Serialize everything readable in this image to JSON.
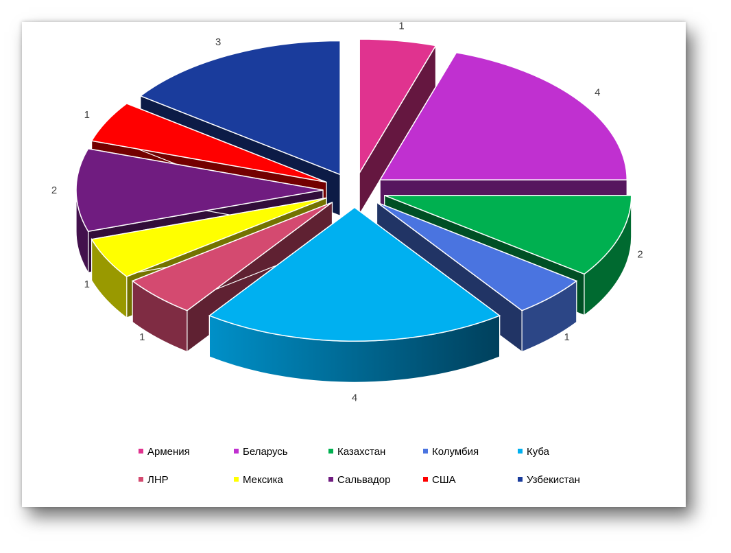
{
  "chart_data": {
    "type": "pie",
    "variant": "3d-exploded",
    "legend_position": "bottom",
    "categories": [
      "Армения",
      "Беларусь",
      "Казахстан",
      "Колумбия",
      "Куба",
      "ЛНР",
      "Мексика",
      "Сальвадор",
      "США",
      "Узбекистан"
    ],
    "values": [
      1,
      4,
      2,
      1,
      4,
      1,
      1,
      2,
      1,
      3
    ],
    "colors": [
      "#E0338F",
      "#C030D0",
      "#00B050",
      "#4A74E0",
      "#00B0F0",
      "#D44A70",
      "#FFFF00",
      "#701C80",
      "#FF0000",
      "#1A3C9C"
    ],
    "data_labels": [
      "1",
      "4",
      "2",
      "1",
      "4",
      "1",
      "1",
      "2",
      "1",
      "3"
    ]
  }
}
